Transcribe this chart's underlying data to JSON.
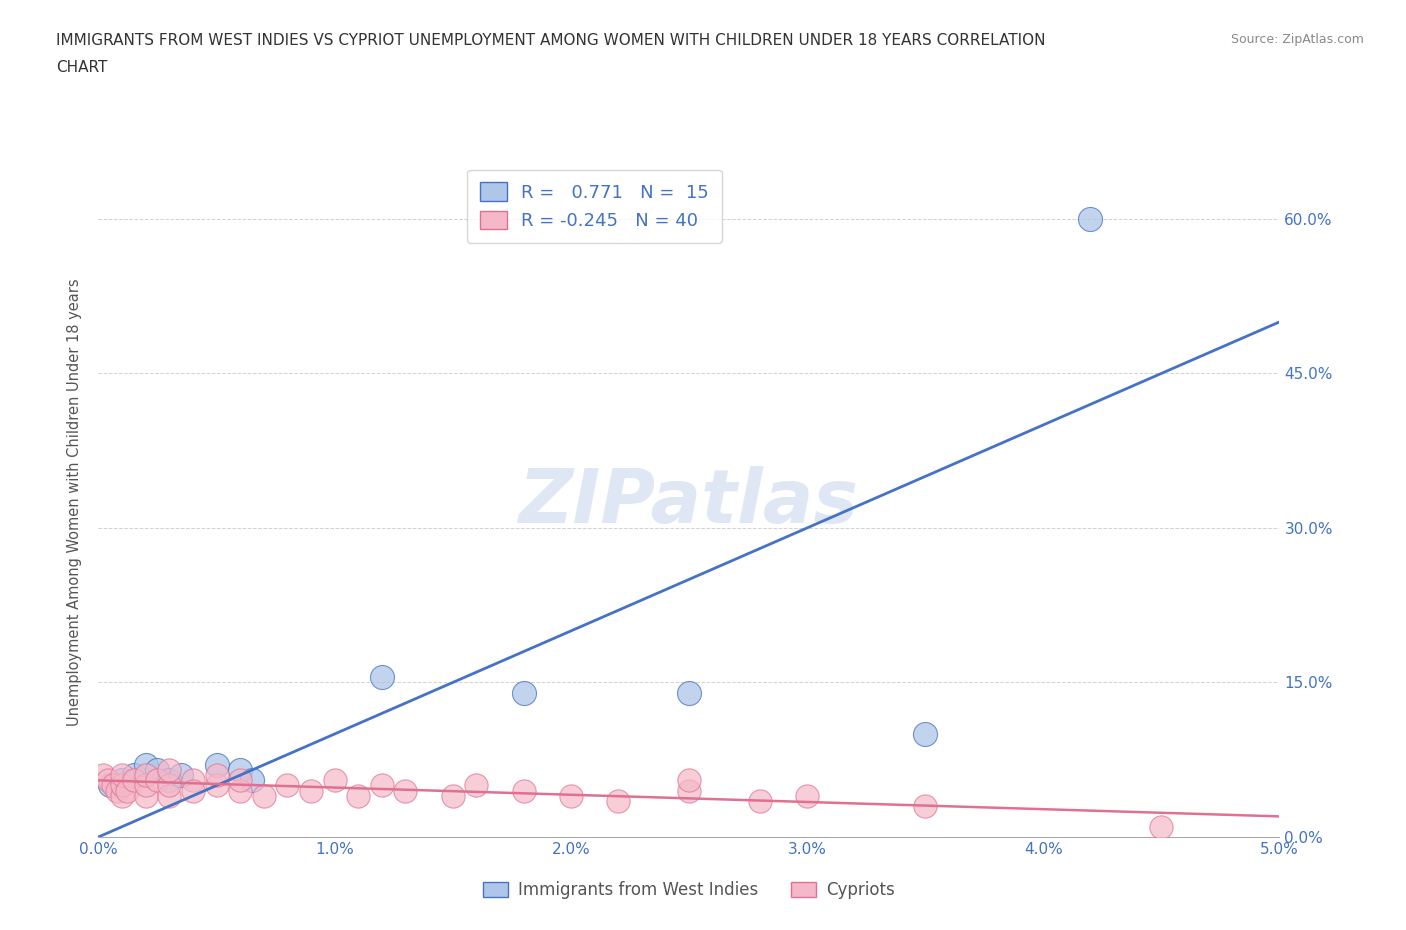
{
  "title_line1": "IMMIGRANTS FROM WEST INDIES VS CYPRIOT UNEMPLOYMENT AMONG WOMEN WITH CHILDREN UNDER 18 YEARS CORRELATION",
  "title_line2": "CHART",
  "source": "Source: ZipAtlas.com",
  "ylabel": "Unemployment Among Women with Children Under 18 years",
  "xlim": [
    0.0,
    0.05
  ],
  "ylim": [
    0.0,
    0.65
  ],
  "xticks": [
    0.0,
    0.01,
    0.02,
    0.03,
    0.04,
    0.05
  ],
  "xtick_labels": [
    "0.0%",
    "1.0%",
    "2.0%",
    "3.0%",
    "4.0%",
    "5.0%"
  ],
  "yticks": [
    0.0,
    0.15,
    0.3,
    0.45,
    0.6
  ],
  "ytick_labels": [
    "0.0%",
    "15.0%",
    "30.0%",
    "45.0%",
    "60.0%"
  ],
  "blue_R": 0.771,
  "blue_N": 15,
  "pink_R": -0.245,
  "pink_N": 40,
  "blue_color": "#aec6e8",
  "pink_color": "#f4b8c8",
  "blue_line_color": "#4472c4",
  "pink_line_color": "#e07090",
  "watermark": "ZIPatlas",
  "watermark_color": "#c8d8ec",
  "legend_label_blue": "Immigrants from West Indies",
  "legend_label_pink": "Cypriots",
  "blue_scatter_x": [
    0.0005,
    0.001,
    0.0015,
    0.002,
    0.0025,
    0.003,
    0.0035,
    0.005,
    0.006,
    0.0065,
    0.012,
    0.018,
    0.025,
    0.035,
    0.042
  ],
  "blue_scatter_y": [
    0.05,
    0.055,
    0.06,
    0.07,
    0.065,
    0.055,
    0.06,
    0.07,
    0.065,
    0.055,
    0.155,
    0.14,
    0.14,
    0.1,
    0.6
  ],
  "pink_scatter_x": [
    0.0002,
    0.0004,
    0.0006,
    0.0008,
    0.001,
    0.001,
    0.001,
    0.0012,
    0.0015,
    0.002,
    0.002,
    0.002,
    0.0025,
    0.003,
    0.003,
    0.003,
    0.004,
    0.004,
    0.005,
    0.005,
    0.006,
    0.006,
    0.007,
    0.008,
    0.009,
    0.01,
    0.011,
    0.012,
    0.013,
    0.015,
    0.016,
    0.018,
    0.02,
    0.022,
    0.025,
    0.025,
    0.028,
    0.03,
    0.035,
    0.045
  ],
  "pink_scatter_y": [
    0.06,
    0.055,
    0.05,
    0.045,
    0.04,
    0.05,
    0.06,
    0.045,
    0.055,
    0.04,
    0.05,
    0.06,
    0.055,
    0.04,
    0.05,
    0.065,
    0.055,
    0.045,
    0.05,
    0.06,
    0.045,
    0.055,
    0.04,
    0.05,
    0.045,
    0.055,
    0.04,
    0.05,
    0.045,
    0.04,
    0.05,
    0.045,
    0.04,
    0.035,
    0.045,
    0.055,
    0.035,
    0.04,
    0.03,
    0.01
  ],
  "blue_line_x": [
    0.0,
    0.05
  ],
  "blue_line_y": [
    0.0,
    0.5
  ],
  "pink_line_x": [
    0.0,
    0.05
  ],
  "pink_line_y": [
    0.055,
    0.02
  ]
}
